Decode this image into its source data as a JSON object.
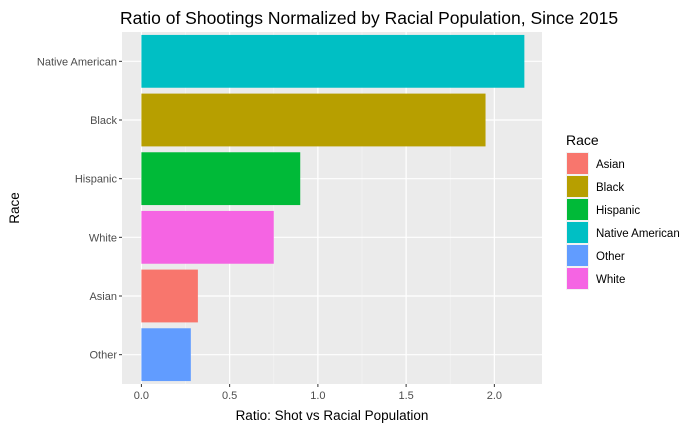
{
  "chart_data": {
    "type": "bar",
    "orientation": "horizontal",
    "title": "Ratio of Shootings Normalized by Racial Population, Since 2015",
    "xlabel": "Ratio: Shot vs Racial Population",
    "ylabel": "Race",
    "xlim": [
      -0.11,
      2.27
    ],
    "xticks": [
      "0.0",
      "0.5",
      "1.0",
      "1.5",
      "2.0"
    ],
    "xtick_values": [
      0,
      0.5,
      1.0,
      1.5,
      2.0
    ],
    "grid": true,
    "legend_position": "right",
    "legend_title": "Race",
    "bars": [
      {
        "category": "Native American",
        "value": 2.17,
        "color": "#00BFC4"
      },
      {
        "category": "Black",
        "value": 1.95,
        "color": "#B79F00"
      },
      {
        "category": "Hispanic",
        "value": 0.9,
        "color": "#00BA38"
      },
      {
        "category": "White",
        "value": 0.75,
        "color": "#F564E3"
      },
      {
        "category": "Asian",
        "value": 0.32,
        "color": "#F8766D"
      },
      {
        "category": "Other",
        "value": 0.28,
        "color": "#619CFF"
      }
    ],
    "legend": [
      {
        "label": "Asian",
        "color": "#F8766D"
      },
      {
        "label": "Black",
        "color": "#B79F00"
      },
      {
        "label": "Hispanic",
        "color": "#00BA38"
      },
      {
        "label": "Native American",
        "color": "#00BFC4"
      },
      {
        "label": "Other",
        "color": "#619CFF"
      },
      {
        "label": "White",
        "color": "#F564E3"
      }
    ]
  }
}
